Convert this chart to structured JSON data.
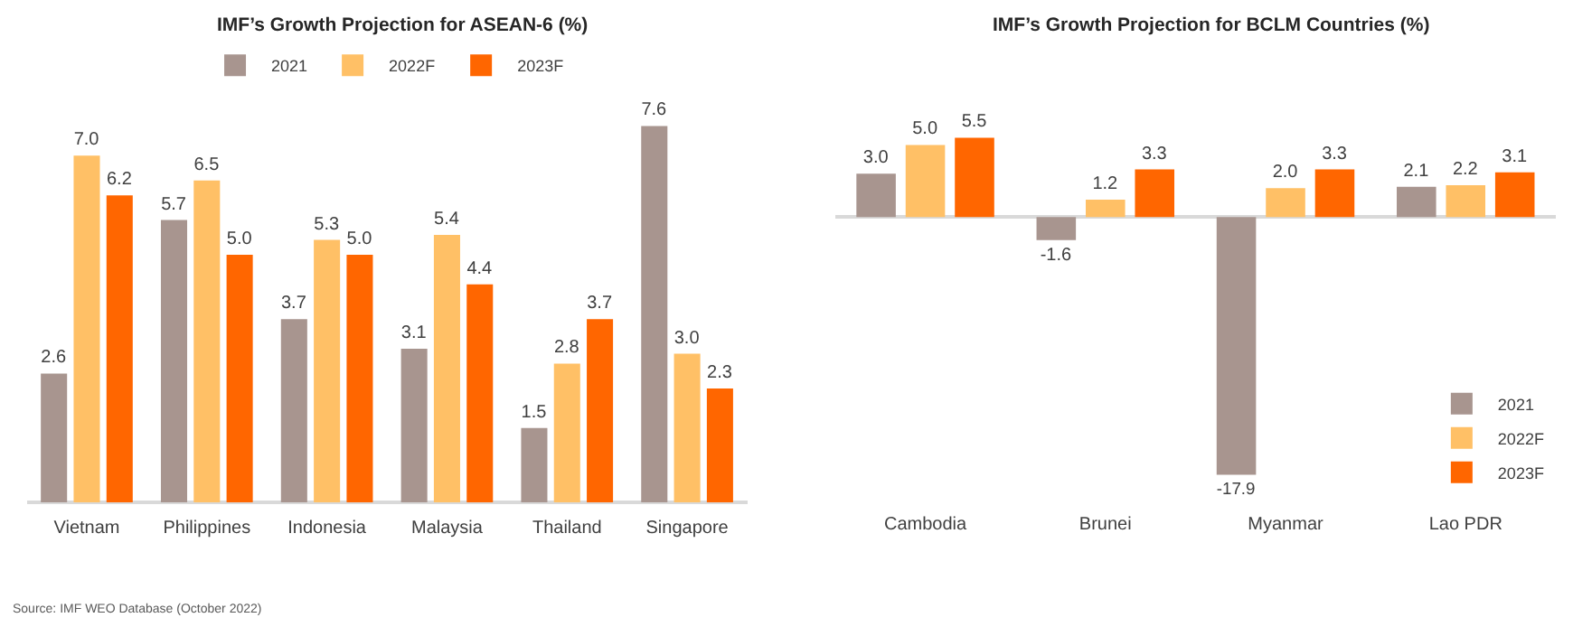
{
  "chart_data": [
    {
      "type": "bar",
      "title": "IMF’s Growth Projection for ASEAN-6 (%)",
      "categories": [
        "Vietnam",
        "Philippines",
        "Indonesia",
        "Malaysia",
        "Thailand",
        "Singapore"
      ],
      "series": [
        {
          "name": "2021",
          "color": "#a8958f",
          "values": [
            2.6,
            5.7,
            3.7,
            3.1,
            1.5,
            7.6
          ],
          "value_labels": [
            "2.6",
            "5.7",
            "3.7",
            "3.1",
            "1.5",
            "7.6"
          ]
        },
        {
          "name": "2022F",
          "color": "#ffc066",
          "values": [
            7.0,
            6.5,
            5.3,
            5.4,
            2.8,
            3.0
          ],
          "value_labels": [
            "7.0",
            "6.5",
            "5.3",
            "5.4",
            "2.8",
            "3.0"
          ]
        },
        {
          "name": "2023F",
          "color": "#ff6600",
          "values": [
            6.2,
            5.0,
            5.0,
            4.4,
            3.7,
            2.3
          ],
          "value_labels": [
            "6.2",
            "5.0",
            "5.0",
            "4.4",
            "3.7",
            "2.3"
          ]
        }
      ],
      "legend": "top",
      "tick_labels": "x",
      "annotations": [
        "Source: IMF WEO Database (October 2022)"
      ]
    },
    {
      "type": "bar",
      "title": "IMF’s Growth Projection for BCLM Countries (%)",
      "categories": [
        "Cambodia",
        "Brunei",
        "Myanmar",
        "Lao PDR"
      ],
      "series": [
        {
          "name": "2021",
          "color": "#a8958f",
          "values": [
            3.0,
            -1.6,
            -17.9,
            2.1
          ],
          "value_labels": [
            "3.0",
            "-1.6",
            "-17.9",
            "2.1"
          ]
        },
        {
          "name": "2022F",
          "color": "#ffc066",
          "values": [
            5.0,
            1.2,
            2.0,
            2.2
          ],
          "value_labels": [
            "5.0",
            "1.2",
            "2.0",
            "2.2"
          ]
        },
        {
          "name": "2023F",
          "color": "#ff6600",
          "values": [
            5.5,
            3.3,
            3.3,
            3.1
          ],
          "value_labels": [
            "5.5",
            "3.3",
            "3.3",
            "3.1"
          ]
        }
      ],
      "legend": "bottom right",
      "tick_labels": "x"
    }
  ]
}
